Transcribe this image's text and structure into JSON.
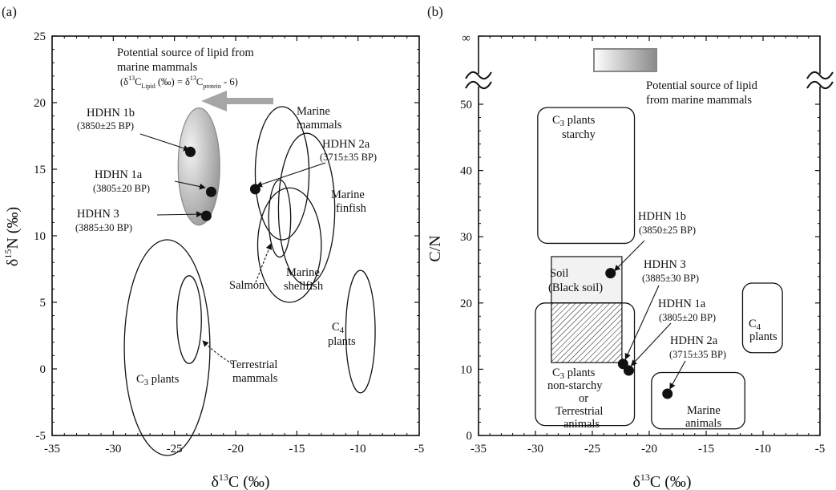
{
  "chart_data": [
    {
      "type": "scatter",
      "panel_label": "(a)",
      "xlabel": "δ13C (‰)",
      "ylabel": "δ15N (‰)",
      "xlim": [
        -35,
        -5
      ],
      "ylim": [
        -5,
        25
      ],
      "x_ticks": [
        "-35",
        "-30",
        "-25",
        "-20",
        "-15",
        "-10",
        "-5"
      ],
      "y_ticks": [
        "-5",
        "0",
        "5",
        "10",
        "15",
        "20",
        "25"
      ],
      "points": [
        {
          "name": "HDHN 1b",
          "date": "(3850±25 BP)",
          "x": -23.7,
          "y": 16.3
        },
        {
          "name": "HDHN 1a",
          "date": "(3805±20 BP)",
          "x": -22.0,
          "y": 13.3
        },
        {
          "name": "HDHN 3",
          "date": "(3885±30 BP)",
          "x": -22.4,
          "y": 11.5
        },
        {
          "name": "HDHN 2a",
          "date": "(3715±35 BP)",
          "x": -18.4,
          "y": 13.5
        }
      ],
      "regions": [
        {
          "name": "Marine mammals",
          "cx": -16.2,
          "cy": 14.7,
          "rx": 2.2,
          "ry": 5.0
        },
        {
          "name": "Marine finfish",
          "cx": -14.2,
          "cy": 12.0,
          "rx": 2.3,
          "ry": 5.7
        },
        {
          "name": "Salmon",
          "cx": -16.4,
          "cy": 11.3,
          "rx": 0.9,
          "ry": 2.9
        },
        {
          "name": "Marine shellfish",
          "cx": -15.6,
          "cy": 9.3,
          "rx": 2.6,
          "ry": 4.3
        },
        {
          "name": "C4 plants",
          "cx": -9.8,
          "cy": 2.8,
          "rx": 1.2,
          "ry": 4.6
        },
        {
          "name": "C3 plants",
          "cx": -25.6,
          "cy": 1.6,
          "rx": 3.5,
          "ry": 8.1
        },
        {
          "name": "Terrestrial mammals",
          "cx": -23.8,
          "cy": 3.7,
          "rx": 1.0,
          "ry": 3.3
        }
      ],
      "lipid_region": {
        "cx": -23.0,
        "cy": 15.2,
        "rx": 1.7,
        "ry": 4.4
      },
      "annotations": {
        "lipid_line1": "Potential source of lipid from",
        "lipid_line2": "marine mammals",
        "formula": "(δ13CLipid (‰) = δ13Cprotein - 6)",
        "marine_mammals_1": "Marine",
        "marine_mammals_2": "mammals",
        "marine_finfish_1": "Marine",
        "marine_finfish_2": "finfish",
        "marine_shellfish_1": "Marine",
        "marine_shellfish_2": "shellfish",
        "salmon": "Salmon",
        "terrestrial_1": "Terrestrial",
        "terrestrial_2": "mammals",
        "c3": "C3 plants",
        "c4_1": "C4",
        "c4_2": "plants"
      }
    },
    {
      "type": "scatter",
      "panel_label": "(b)",
      "xlabel": "δ13C (‰)",
      "ylabel": "C/N",
      "xlim": [
        -35,
        -5
      ],
      "ylim": [
        0,
        50
      ],
      "x_ticks": [
        "-35",
        "-30",
        "-25",
        "-20",
        "-15",
        "-10",
        "-5"
      ],
      "y_ticks": [
        "0",
        "10",
        "20",
        "30",
        "40",
        "50"
      ],
      "top_tick": "∞",
      "points": [
        {
          "name": "HDHN 1b",
          "date": "(3850±25 BP)",
          "x": -23.4,
          "y": 24.5
        },
        {
          "name": "HDHN 3",
          "date": "(3885±30 BP)",
          "x": -22.3,
          "y": 10.8
        },
        {
          "name": "HDHN 1a",
          "date": "(3805±20 BP)",
          "x": -21.8,
          "y": 9.8
        },
        {
          "name": "HDHN 2a",
          "date": "(3715±35 BP)",
          "x": -18.4,
          "y": 6.3
        }
      ],
      "regions": [
        {
          "name": "C3 plants starchy",
          "x0": -29.8,
          "x1": -21.3,
          "y0": 29,
          "y1": 49.5
        },
        {
          "name": "Soil (Black soil)",
          "x0": -28.6,
          "x1": -22.4,
          "y0": 11,
          "y1": 27
        },
        {
          "name": "C3 plants non-starchy or Terrestrial animals",
          "x0": -30.0,
          "x1": -21.3,
          "y0": 1.5,
          "y1": 20
        },
        {
          "name": "C4 plants",
          "x0": -11.8,
          "x1": -8.3,
          "y0": 12.5,
          "y1": 23
        },
        {
          "name": "Marine animals",
          "x0": -19.8,
          "x1": -11.6,
          "y0": 1.0,
          "y1": 9.5
        }
      ],
      "annotations": {
        "lipid_line1": "Potential source of lipid",
        "lipid_line2": "from marine mammals",
        "c3_starchy_1": "C3 plants",
        "c3_starchy_2": "starchy",
        "soil_1": "Soil",
        "soil_2": "(Black soil)",
        "c3_non_1": "C3 plants",
        "c3_non_2": "non-starchy",
        "c3_non_3": "or",
        "c3_non_4": "Terrestrial",
        "c3_non_5": "animals",
        "c4_1": "C4",
        "c4_2": "plants",
        "marine_1": "Marine",
        "marine_2": "animals"
      }
    }
  ],
  "colors": {
    "ink": "#111111",
    "arrow_gray": "#a6a6a6",
    "fill_gray": "#9a9a9a"
  }
}
